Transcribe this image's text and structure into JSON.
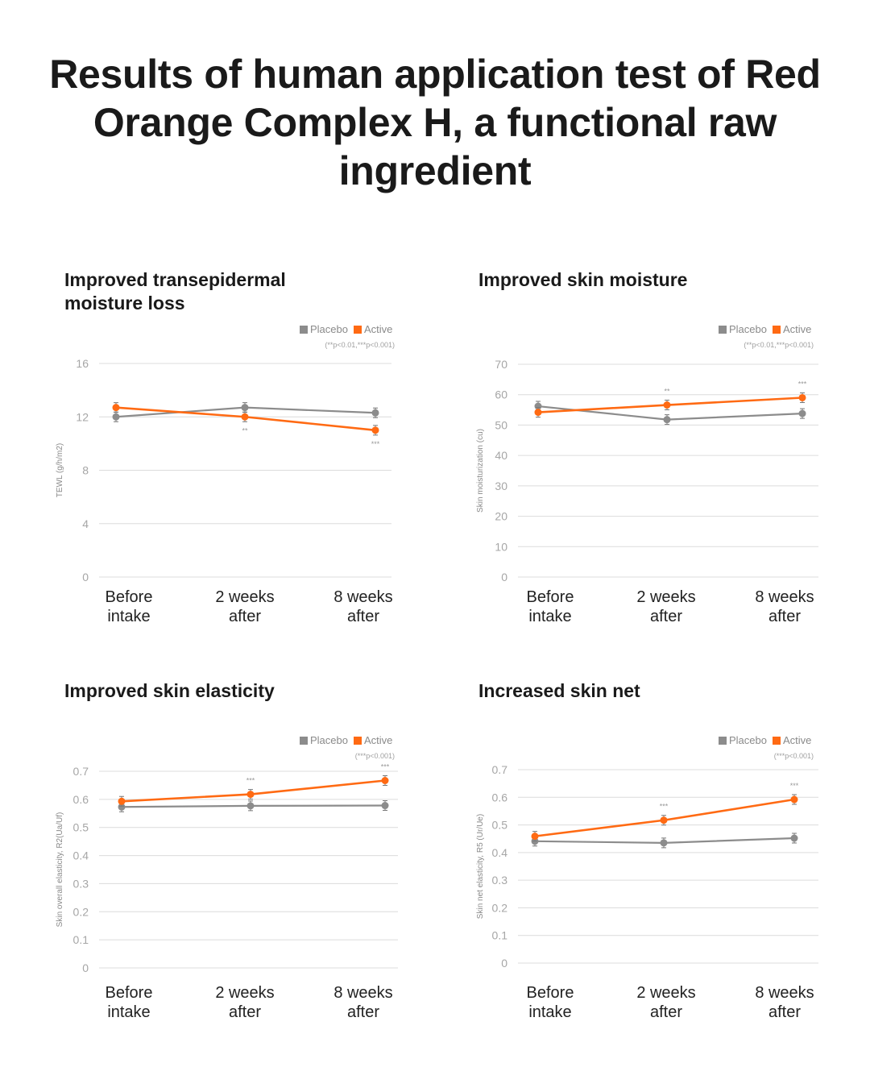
{
  "title": "Results of human application test of Red Orange Complex H, a functional raw ingredient",
  "colors": {
    "placebo": "#8c8c8c",
    "active": "#ff6a13",
    "grid": "#dcdcdc"
  },
  "legend": {
    "placebo": "Placebo",
    "active": "Active"
  },
  "chart_data": [
    {
      "type": "line",
      "title": "Improved transepidermal moisture loss",
      "ylabel": "TEWL (g/h/m2)",
      "legend_note": "(**p<0.01,***p<0.001)",
      "categories": [
        "Before intake",
        "2 weeks after",
        "8 weeks after"
      ],
      "category_lines": [
        [
          "Before",
          "intake"
        ],
        [
          "2 weeks",
          "after"
        ],
        [
          "8 weeks",
          "after"
        ]
      ],
      "ylim": [
        0,
        16
      ],
      "yticks": [
        "0",
        "4",
        "8",
        "12",
        "16"
      ],
      "series": [
        {
          "name": "Placebo",
          "values": [
            12.0,
            12.7,
            12.3
          ]
        },
        {
          "name": "Active",
          "values": [
            12.7,
            12.0,
            11.0
          ]
        }
      ],
      "significance": [
        "",
        "**",
        "***"
      ],
      "significance_pos": "below"
    },
    {
      "type": "line",
      "title": "Improved skin moisture",
      "ylabel": "Skin moisturization (cu)",
      "legend_note": "(**p<0.01,***p<0.001)",
      "categories": [
        "Before intake",
        "2 weeks after",
        "8 weeks after"
      ],
      "category_lines": [
        [
          "Before",
          "intake"
        ],
        [
          "2 weeks",
          "after"
        ],
        [
          "8 weeks",
          "after"
        ]
      ],
      "ylim": [
        0,
        70
      ],
      "yticks": [
        "0",
        "10",
        "20",
        "30",
        "40",
        "50",
        "60",
        "70"
      ],
      "series": [
        {
          "name": "Placebo",
          "values": [
            56.2,
            51.8,
            53.8
          ]
        },
        {
          "name": "Active",
          "values": [
            54.2,
            56.6,
            59.0
          ]
        }
      ],
      "significance": [
        "",
        "**",
        "***"
      ],
      "significance_pos": "above"
    },
    {
      "type": "line",
      "title": "Improved skin elasticity",
      "ylabel": "Skin overall elasticity, R2(Ua/Uf)",
      "legend_note": "(***p<0.001)",
      "categories": [
        "Before intake",
        "2 weeks after",
        "8 weeks after"
      ],
      "category_lines": [
        [
          "Before",
          "intake"
        ],
        [
          "2 weeks",
          "after"
        ],
        [
          "8 weeks",
          "after"
        ]
      ],
      "ylim": [
        0,
        0.7
      ],
      "yticks": [
        "0",
        "0.1",
        "0.2",
        "0.3",
        "0.4",
        "0.5",
        "0.6",
        "0.7"
      ],
      "series": [
        {
          "name": "Placebo",
          "values": [
            0.573,
            0.577,
            0.578
          ]
        },
        {
          "name": "Active",
          "values": [
            0.593,
            0.618,
            0.667
          ]
        }
      ],
      "significance": [
        "",
        "***",
        "***"
      ],
      "significance_pos": "above"
    },
    {
      "type": "line",
      "title": "Increased skin net",
      "ylabel": "Skin net elasticity, R5 (Ur/Ue)",
      "legend_note": "(***p<0.001)",
      "categories": [
        "Before intake",
        "2 weeks after",
        "8 weeks after"
      ],
      "category_lines": [
        [
          "Before",
          "intake"
        ],
        [
          "2 weeks",
          "after"
        ],
        [
          "8 weeks",
          "after"
        ]
      ],
      "ylim": [
        0,
        0.7
      ],
      "yticks": [
        "0",
        "0.1",
        "0.2",
        "0.3",
        "0.4",
        "0.5",
        "0.6",
        "0.7"
      ],
      "series": [
        {
          "name": "Placebo",
          "values": [
            0.441,
            0.435,
            0.452
          ]
        },
        {
          "name": "Active",
          "values": [
            0.459,
            0.517,
            0.592
          ]
        }
      ],
      "significance": [
        "",
        "***",
        "***"
      ],
      "significance_pos": "above"
    }
  ]
}
